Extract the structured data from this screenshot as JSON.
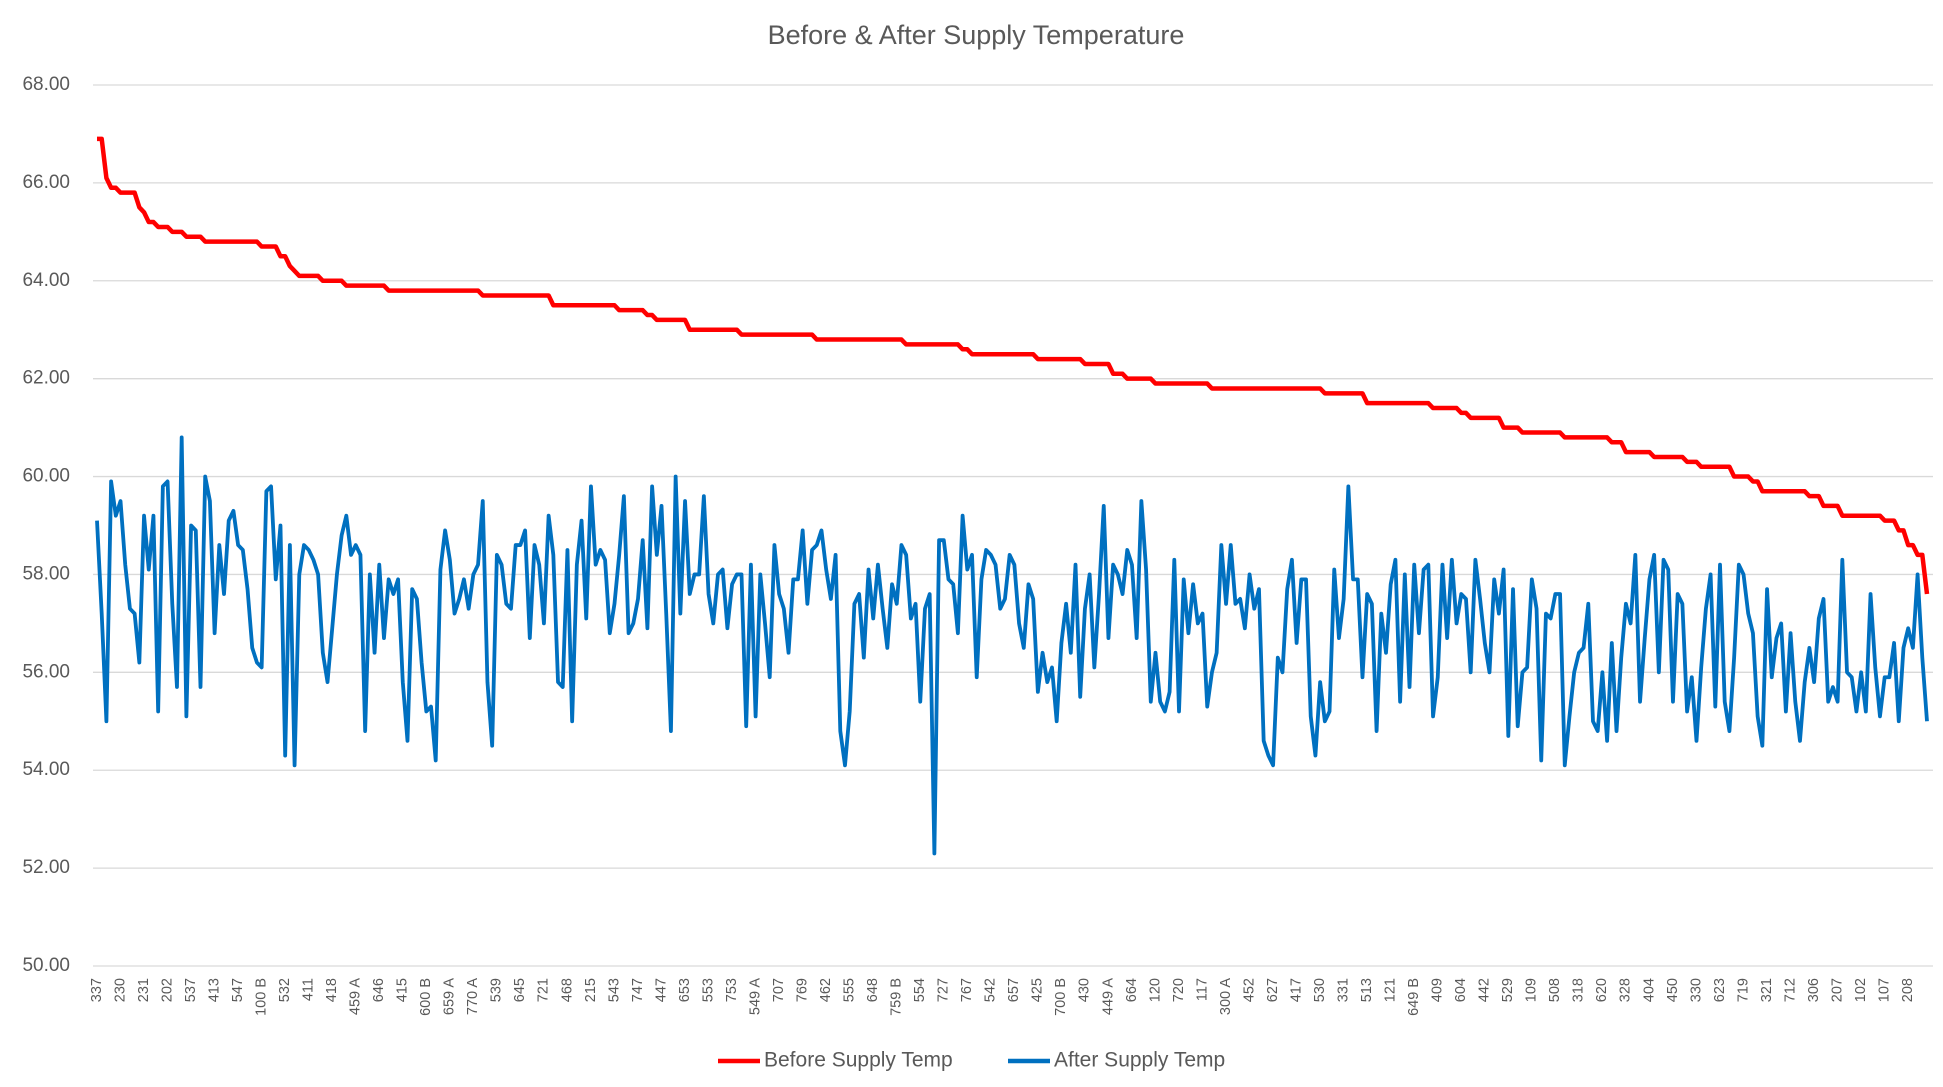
{
  "chart_data": {
    "type": "line",
    "title": "Before & After Supply Temperature",
    "categories": [
      "337",
      null,
      null,
      null,
      null,
      "230",
      null,
      null,
      null,
      null,
      "231",
      null,
      null,
      null,
      null,
      "202",
      null,
      null,
      null,
      null,
      "537",
      null,
      null,
      null,
      null,
      "413",
      null,
      null,
      null,
      null,
      "547",
      null,
      null,
      null,
      null,
      "100 B",
      null,
      null,
      null,
      null,
      "532",
      null,
      null,
      null,
      null,
      "411",
      null,
      null,
      null,
      null,
      "418",
      null,
      null,
      null,
      null,
      "459 A",
      null,
      null,
      null,
      null,
      "646",
      null,
      null,
      null,
      null,
      "415",
      null,
      null,
      null,
      null,
      "600 B",
      null,
      null,
      null,
      null,
      "659 A",
      null,
      null,
      null,
      null,
      "770 A",
      null,
      null,
      null,
      null,
      "539",
      null,
      null,
      null,
      null,
      "645",
      null,
      null,
      null,
      null,
      "721",
      null,
      null,
      null,
      null,
      "468",
      null,
      null,
      null,
      null,
      "215",
      null,
      null,
      null,
      null,
      "543",
      null,
      null,
      null,
      null,
      "747",
      null,
      null,
      null,
      null,
      "447",
      null,
      null,
      null,
      null,
      "653",
      null,
      null,
      null,
      null,
      "553",
      null,
      null,
      null,
      null,
      "753",
      null,
      null,
      null,
      null,
      "549 A",
      null,
      null,
      null,
      null,
      "707",
      null,
      null,
      null,
      null,
      "769",
      null,
      null,
      null,
      null,
      "462",
      null,
      null,
      null,
      null,
      "555",
      null,
      null,
      null,
      null,
      "648",
      null,
      null,
      null,
      null,
      "759 B",
      null,
      null,
      null,
      null,
      "554",
      null,
      null,
      null,
      null,
      "727",
      null,
      null,
      null,
      null,
      "767",
      null,
      null,
      null,
      null,
      "542",
      null,
      null,
      null,
      null,
      "657",
      null,
      null,
      null,
      null,
      "425",
      null,
      null,
      null,
      null,
      "700 B",
      null,
      null,
      null,
      null,
      "430",
      null,
      null,
      null,
      null,
      "449 A",
      null,
      null,
      null,
      null,
      "664",
      null,
      null,
      null,
      null,
      "120",
      null,
      null,
      null,
      null,
      "720",
      null,
      null,
      null,
      null,
      "117",
      null,
      null,
      null,
      null,
      "300 A",
      null,
      null,
      null,
      null,
      "452",
      null,
      null,
      null,
      null,
      "627",
      null,
      null,
      null,
      null,
      "417",
      null,
      null,
      null,
      null,
      "530",
      null,
      null,
      null,
      null,
      "331",
      null,
      null,
      null,
      null,
      "513",
      null,
      null,
      null,
      null,
      "121",
      null,
      null,
      null,
      null,
      "649 B",
      null,
      null,
      null,
      null,
      "409",
      null,
      null,
      null,
      null,
      "604",
      null,
      null,
      null,
      null,
      "442",
      null,
      null,
      null,
      null,
      "529",
      null,
      null,
      null,
      null,
      "109",
      null,
      null,
      null,
      null,
      "508",
      null,
      null,
      null,
      null,
      "318",
      null,
      null,
      null,
      null,
      "620",
      null,
      null,
      null,
      null,
      "328",
      null,
      null,
      null,
      null,
      "404",
      null,
      null,
      null,
      null,
      "450",
      null,
      null,
      null,
      null,
      "330",
      null,
      null,
      null,
      null,
      "623",
      null,
      null,
      null,
      null,
      "719",
      null,
      null,
      null,
      null,
      "321",
      null,
      null,
      null,
      null,
      "712",
      null,
      null,
      null,
      null,
      "306",
      null,
      null,
      null,
      null,
      "207",
      null,
      null,
      null,
      null,
      "102",
      null,
      null,
      null,
      null,
      "107",
      null,
      null,
      null,
      null,
      "208",
      null,
      null,
      null,
      null
    ],
    "series": [
      {
        "name": "Before Supply Temp",
        "color": "#ff0000",
        "values": [
          66.9,
          66.9,
          66.1,
          65.9,
          65.9,
          65.8,
          65.8,
          65.8,
          65.8,
          65.5,
          65.4,
          65.2,
          65.2,
          65.1,
          65.1,
          65.1,
          65.0,
          65.0,
          65.0,
          64.9,
          64.9,
          64.9,
          64.9,
          64.8,
          64.8,
          64.8,
          64.8,
          64.8,
          64.8,
          64.8,
          64.8,
          64.8,
          64.8,
          64.8,
          64.8,
          64.7,
          64.7,
          64.7,
          64.7,
          64.5,
          64.5,
          64.3,
          64.2,
          64.1,
          64.1,
          64.1,
          64.1,
          64.1,
          64.0,
          64.0,
          64.0,
          64.0,
          64.0,
          63.9,
          63.9,
          63.9,
          63.9,
          63.9,
          63.9,
          63.9,
          63.9,
          63.9,
          63.8,
          63.8,
          63.8,
          63.8,
          63.8,
          63.8,
          63.8,
          63.8,
          63.8,
          63.8,
          63.8,
          63.8,
          63.8,
          63.8,
          63.8,
          63.8,
          63.8,
          63.8,
          63.8,
          63.8,
          63.7,
          63.7,
          63.7,
          63.7,
          63.7,
          63.7,
          63.7,
          63.7,
          63.7,
          63.7,
          63.7,
          63.7,
          63.7,
          63.7,
          63.7,
          63.5,
          63.5,
          63.5,
          63.5,
          63.5,
          63.5,
          63.5,
          63.5,
          63.5,
          63.5,
          63.5,
          63.5,
          63.5,
          63.5,
          63.4,
          63.4,
          63.4,
          63.4,
          63.4,
          63.4,
          63.3,
          63.3,
          63.2,
          63.2,
          63.2,
          63.2,
          63.2,
          63.2,
          63.2,
          63.0,
          63.0,
          63.0,
          63.0,
          63.0,
          63.0,
          63.0,
          63.0,
          63.0,
          63.0,
          63.0,
          62.9,
          62.9,
          62.9,
          62.9,
          62.9,
          62.9,
          62.9,
          62.9,
          62.9,
          62.9,
          62.9,
          62.9,
          62.9,
          62.9,
          62.9,
          62.9,
          62.8,
          62.8,
          62.8,
          62.8,
          62.8,
          62.8,
          62.8,
          62.8,
          62.8,
          62.8,
          62.8,
          62.8,
          62.8,
          62.8,
          62.8,
          62.8,
          62.8,
          62.8,
          62.8,
          62.7,
          62.7,
          62.7,
          62.7,
          62.7,
          62.7,
          62.7,
          62.7,
          62.7,
          62.7,
          62.7,
          62.7,
          62.6,
          62.6,
          62.5,
          62.5,
          62.5,
          62.5,
          62.5,
          62.5,
          62.5,
          62.5,
          62.5,
          62.5,
          62.5,
          62.5,
          62.5,
          62.5,
          62.4,
          62.4,
          62.4,
          62.4,
          62.4,
          62.4,
          62.4,
          62.4,
          62.4,
          62.4,
          62.3,
          62.3,
          62.3,
          62.3,
          62.3,
          62.3,
          62.1,
          62.1,
          62.1,
          62.0,
          62.0,
          62.0,
          62.0,
          62.0,
          62.0,
          61.9,
          61.9,
          61.9,
          61.9,
          61.9,
          61.9,
          61.9,
          61.9,
          61.9,
          61.9,
          61.9,
          61.9,
          61.8,
          61.8,
          61.8,
          61.8,
          61.8,
          61.8,
          61.8,
          61.8,
          61.8,
          61.8,
          61.8,
          61.8,
          61.8,
          61.8,
          61.8,
          61.8,
          61.8,
          61.8,
          61.8,
          61.8,
          61.8,
          61.8,
          61.8,
          61.8,
          61.7,
          61.7,
          61.7,
          61.7,
          61.7,
          61.7,
          61.7,
          61.7,
          61.7,
          61.5,
          61.5,
          61.5,
          61.5,
          61.5,
          61.5,
          61.5,
          61.5,
          61.5,
          61.5,
          61.5,
          61.5,
          61.5,
          61.5,
          61.4,
          61.4,
          61.4,
          61.4,
          61.4,
          61.4,
          61.3,
          61.3,
          61.2,
          61.2,
          61.2,
          61.2,
          61.2,
          61.2,
          61.2,
          61.0,
          61.0,
          61.0,
          61.0,
          60.9,
          60.9,
          60.9,
          60.9,
          60.9,
          60.9,
          60.9,
          60.9,
          60.9,
          60.8,
          60.8,
          60.8,
          60.8,
          60.8,
          60.8,
          60.8,
          60.8,
          60.8,
          60.8,
          60.7,
          60.7,
          60.7,
          60.5,
          60.5,
          60.5,
          60.5,
          60.5,
          60.5,
          60.4,
          60.4,
          60.4,
          60.4,
          60.4,
          60.4,
          60.4,
          60.3,
          60.3,
          60.3,
          60.2,
          60.2,
          60.2,
          60.2,
          60.2,
          60.2,
          60.2,
          60.0,
          60.0,
          60.0,
          60.0,
          59.9,
          59.9,
          59.7,
          59.7,
          59.7,
          59.7,
          59.7,
          59.7,
          59.7,
          59.7,
          59.7,
          59.7,
          59.6,
          59.6,
          59.6,
          59.4,
          59.4,
          59.4,
          59.4,
          59.2,
          59.2,
          59.2,
          59.2,
          59.2,
          59.2,
          59.2,
          59.2,
          59.2,
          59.1,
          59.1,
          59.1,
          58.9,
          58.9,
          58.6,
          58.6,
          58.4,
          58.4,
          57.6
        ]
      },
      {
        "name": "After Supply Temp",
        "color": "#0070c0",
        "values": [
          59.1,
          57.2,
          55.0,
          59.9,
          59.2,
          59.5,
          58.2,
          57.3,
          57.2,
          56.2,
          59.2,
          58.1,
          59.2,
          55.2,
          59.8,
          59.9,
          57.4,
          55.7,
          60.8,
          55.1,
          59.0,
          58.9,
          55.7,
          60.0,
          59.5,
          56.8,
          58.6,
          57.6,
          59.1,
          59.3,
          58.6,
          58.5,
          57.7,
          56.5,
          56.2,
          56.1,
          59.7,
          59.8,
          57.9,
          59.0,
          54.3,
          58.6,
          54.1,
          58.0,
          58.6,
          58.5,
          58.3,
          58.0,
          56.4,
          55.8,
          56.9,
          58.0,
          58.8,
          59.2,
          58.4,
          58.6,
          58.4,
          54.8,
          58.0,
          56.4,
          58.2,
          56.7,
          57.9,
          57.6,
          57.9,
          55.8,
          54.6,
          57.7,
          57.5,
          56.2,
          55.2,
          55.3,
          54.2,
          58.1,
          58.9,
          58.3,
          57.2,
          57.5,
          57.9,
          57.3,
          58.0,
          58.2,
          59.5,
          55.8,
          54.5,
          58.4,
          58.2,
          57.4,
          57.3,
          58.6,
          58.6,
          58.9,
          56.7,
          58.6,
          58.2,
          57.0,
          59.2,
          58.4,
          55.8,
          55.7,
          58.5,
          55.0,
          58.2,
          59.1,
          57.1,
          59.8,
          58.2,
          58.5,
          58.3,
          56.8,
          57.4,
          58.4,
          59.6,
          56.8,
          57.0,
          57.5,
          58.7,
          56.9,
          59.8,
          58.4,
          59.4,
          57.2,
          54.8,
          60.0,
          57.2,
          59.5,
          57.6,
          58.0,
          58.0,
          59.6,
          57.6,
          57.0,
          58.0,
          58.1,
          56.9,
          57.8,
          58.0,
          58.0,
          54.9,
          58.2,
          55.1,
          58.0,
          57.0,
          55.9,
          58.6,
          57.6,
          57.3,
          56.4,
          57.9,
          57.9,
          58.9,
          57.4,
          58.5,
          58.6,
          58.9,
          58.1,
          57.5,
          58.4,
          54.8,
          54.1,
          55.2,
          57.4,
          57.6,
          56.3,
          58.1,
          57.1,
          58.2,
          57.3,
          56.5,
          57.8,
          57.4,
          58.6,
          58.4,
          57.1,
          57.4,
          55.4,
          57.3,
          57.6,
          52.3,
          58.7,
          58.7,
          57.9,
          57.8,
          56.8,
          59.2,
          58.1,
          58.4,
          55.9,
          57.9,
          58.5,
          58.4,
          58.2,
          57.3,
          57.5,
          58.4,
          58.2,
          57.0,
          56.5,
          57.8,
          57.5,
          55.6,
          56.4,
          55.8,
          56.1,
          55.0,
          56.6,
          57.4,
          56.4,
          58.2,
          55.5,
          57.3,
          58.0,
          56.1,
          57.6,
          59.4,
          56.7,
          58.2,
          58.0,
          57.6,
          58.5,
          58.2,
          56.7,
          59.5,
          58.1,
          55.4,
          56.4,
          55.4,
          55.2,
          55.6,
          58.3,
          55.2,
          57.9,
          56.8,
          57.8,
          57.0,
          57.2,
          55.3,
          56.0,
          56.4,
          58.6,
          57.4,
          58.6,
          57.4,
          57.5,
          56.9,
          58.0,
          57.3,
          57.7,
          54.6,
          54.3,
          54.1,
          56.3,
          56.0,
          57.7,
          58.3,
          56.6,
          57.9,
          57.9,
          55.1,
          54.3,
          55.8,
          55.0,
          55.2,
          58.1,
          56.7,
          57.5,
          59.8,
          57.9,
          57.9,
          55.9,
          57.6,
          57.4,
          54.8,
          57.2,
          56.4,
          57.8,
          58.3,
          55.4,
          58.0,
          55.7,
          58.2,
          56.8,
          58.1,
          58.2,
          55.1,
          55.9,
          58.2,
          56.7,
          58.3,
          57.0,
          57.6,
          57.5,
          56.0,
          58.3,
          57.5,
          56.6,
          56.0,
          57.9,
          57.2,
          58.1,
          54.7,
          57.7,
          54.9,
          56.0,
          56.1,
          57.9,
          57.3,
          54.2,
          57.2,
          57.1,
          57.6,
          57.6,
          54.1,
          55.1,
          56.0,
          56.4,
          56.5,
          57.4,
          55.0,
          54.8,
          56.0,
          54.6,
          56.6,
          54.8,
          56.3,
          57.4,
          57.0,
          58.4,
          55.4,
          56.7,
          57.9,
          58.4,
          56.0,
          58.3,
          58.1,
          55.4,
          57.6,
          57.4,
          55.2,
          55.9,
          54.6,
          56.1,
          57.3,
          58.0,
          55.3,
          58.2,
          55.4,
          54.8,
          56.3,
          58.2,
          58.0,
          57.2,
          56.8,
          55.1,
          54.5,
          57.7,
          55.9,
          56.7,
          57.0,
          55.2,
          56.8,
          55.4,
          54.6,
          55.8,
          56.5,
          55.8,
          57.1,
          57.5,
          55.4,
          55.7,
          55.4,
          58.3,
          56.0,
          55.9,
          55.2,
          56.0,
          55.2,
          57.6,
          56.1,
          55.1,
          55.9,
          55.9,
          56.6,
          55.0,
          56.5,
          56.9,
          56.5,
          58.0,
          56.3,
          55.0
        ]
      }
    ],
    "ylim": [
      50,
      68
    ],
    "yticks": [
      {
        "value": 50,
        "label": "50.00"
      },
      {
        "value": 52,
        "label": "52.00"
      },
      {
        "value": 54,
        "label": "54.00"
      },
      {
        "value": 56,
        "label": "56.00"
      },
      {
        "value": 58,
        "label": "58.00"
      },
      {
        "value": 60,
        "label": "60.00"
      },
      {
        "value": 62,
        "label": "62.00"
      },
      {
        "value": 64,
        "label": "64.00"
      },
      {
        "value": 66,
        "label": "66.00"
      },
      {
        "value": 68,
        "label": "68.00"
      }
    ],
    "grid": true,
    "legend": "bottom"
  }
}
